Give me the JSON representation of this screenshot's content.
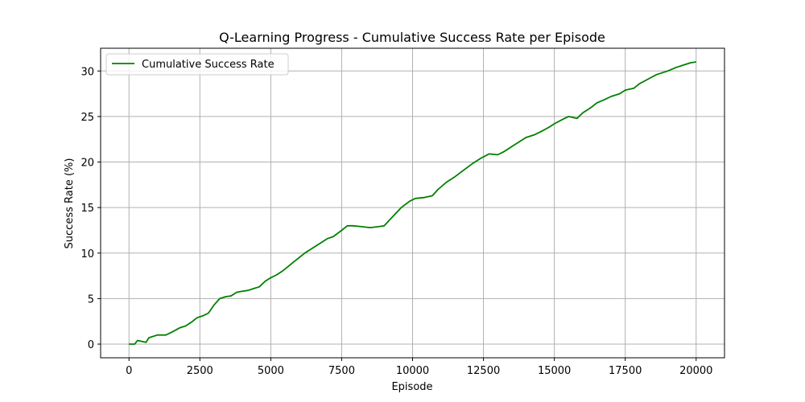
{
  "chart_data": {
    "type": "line",
    "title": "Q-Learning Progress - Cumulative Success Rate per Episode",
    "xlabel": "Episode",
    "ylabel": "Success Rate (%)",
    "xlim": [
      -1000,
      21000
    ],
    "ylim": [
      -1.5,
      32.5
    ],
    "x_ticks": [
      0,
      2500,
      5000,
      7500,
      10000,
      12500,
      15000,
      17500,
      20000
    ],
    "y_ticks": [
      0,
      5,
      10,
      15,
      20,
      25,
      30
    ],
    "grid": true,
    "legend_position": "upper-left",
    "series": [
      {
        "name": "Cumulative Success Rate",
        "color": "#008000",
        "x": [
          0,
          200,
          300,
          600,
          700,
          1000,
          1300,
          1500,
          1800,
          2000,
          2200,
          2400,
          2600,
          2800,
          3000,
          3200,
          3400,
          3600,
          3800,
          4000,
          4200,
          4400,
          4600,
          4800,
          5000,
          5200,
          5400,
          5600,
          5800,
          6000,
          6200,
          6500,
          6800,
          7000,
          7200,
          7500,
          7700,
          7900,
          8200,
          8500,
          8800,
          9000,
          9300,
          9600,
          9900,
          10100,
          10400,
          10700,
          10900,
          11200,
          11500,
          11800,
          12100,
          12400,
          12700,
          13000,
          13200,
          13500,
          13800,
          14000,
          14300,
          14500,
          14800,
          15000,
          15300,
          15500,
          15800,
          16000,
          16300,
          16500,
          16800,
          17000,
          17300,
          17500,
          17800,
          18000,
          18300,
          18600,
          19000,
          19300,
          19600,
          19800,
          20000
        ],
        "values": [
          0,
          0,
          0.4,
          0.2,
          0.7,
          1.0,
          1.0,
          1.3,
          1.8,
          2.0,
          2.4,
          2.9,
          3.1,
          3.4,
          4.3,
          5.0,
          5.2,
          5.3,
          5.7,
          5.8,
          5.9,
          6.1,
          6.3,
          6.9,
          7.3,
          7.6,
          8.0,
          8.5,
          9.0,
          9.5,
          10.0,
          10.6,
          11.2,
          11.6,
          11.8,
          12.5,
          13.0,
          13.0,
          12.9,
          12.8,
          12.9,
          13.0,
          14.0,
          15.0,
          15.7,
          16.0,
          16.1,
          16.3,
          17.0,
          17.8,
          18.4,
          19.1,
          19.8,
          20.4,
          20.9,
          20.8,
          21.1,
          21.7,
          22.3,
          22.7,
          23.0,
          23.3,
          23.8,
          24.2,
          24.7,
          25.0,
          24.8,
          25.4,
          26.0,
          26.5,
          26.9,
          27.2,
          27.5,
          27.9,
          28.1,
          28.6,
          29.1,
          29.6,
          30.0,
          30.4,
          30.7,
          30.9,
          31.0
        ]
      }
    ]
  }
}
